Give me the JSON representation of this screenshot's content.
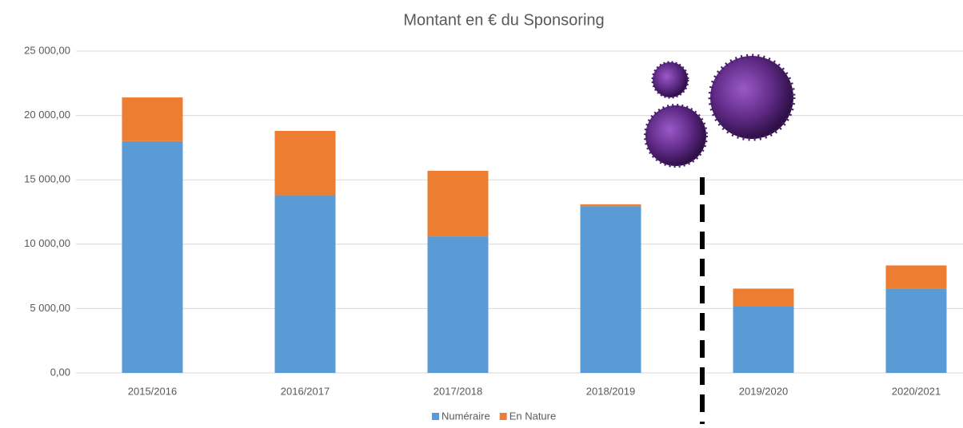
{
  "chart_data": {
    "type": "stacked-bar",
    "title": "Montant en € du Sponsoring",
    "categories": [
      "2015/2016",
      "2016/2017",
      "2017/2018",
      "2018/2019",
      "2019/2020",
      "2020/2021"
    ],
    "series": [
      {
        "name": "Numéraire",
        "color": "#5b9bd5",
        "values": [
          18000,
          13800,
          10600,
          12950,
          5150,
          6550
        ]
      },
      {
        "name": "En Nature",
        "color": "#ed7d31",
        "values": [
          3400,
          5000,
          5100,
          150,
          1400,
          1800
        ]
      }
    ],
    "ylim": [
      0,
      25000
    ],
    "yticks": [
      {
        "value": 0,
        "label": "0,00"
      },
      {
        "value": 5000,
        "label": "5 000,00"
      },
      {
        "value": 10000,
        "label": "10 000,00"
      },
      {
        "value": 15000,
        "label": "15 000,00"
      },
      {
        "value": 20000,
        "label": "20 000,00"
      },
      {
        "value": 25000,
        "label": "25 000,00"
      }
    ],
    "grid": true,
    "legend": "bottom"
  }
}
